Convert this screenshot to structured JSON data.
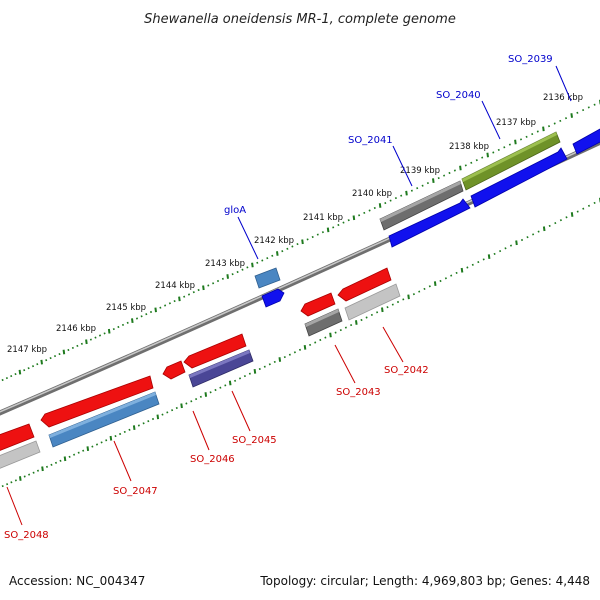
{
  "title": "Shewanella oneidensis MR-1, complete genome",
  "footer": {
    "accession": "Accession: NC_004347",
    "topology": "Topology: circular; Length: 4,969,803 bp; Genes: 4,448"
  },
  "colors": {
    "backbone": "#8a8a8a",
    "tick": "#1e7a1e",
    "label_forward": "#0000cc",
    "label_reverse": "#cc0000",
    "red": "#ee1111",
    "blue": "#1111ee",
    "steelblue": "#4a86c2",
    "gray": "#6e6e6e",
    "lightgray": "#c4c4c4",
    "olive": "#6f9228",
    "purple": "#4a4696"
  },
  "scale": {
    "unit": "kbp",
    "labels": [
      "2136 kbp",
      "2137 kbp",
      "2138 kbp",
      "2139 kbp",
      "2140 kbp",
      "2141 kbp",
      "2142 kbp",
      "2143 kbp",
      "2144 kbp",
      "2145 kbp",
      "2146 kbp",
      "2147 kbp"
    ]
  },
  "gene_labels": {
    "forward": [
      "SO_2039",
      "SO_2040",
      "SO_2041",
      "gloA"
    ],
    "reverse": [
      "SO_2042",
      "SO_2043",
      "SO_2045",
      "SO_2046",
      "SO_2047",
      "SO_2048"
    ]
  }
}
